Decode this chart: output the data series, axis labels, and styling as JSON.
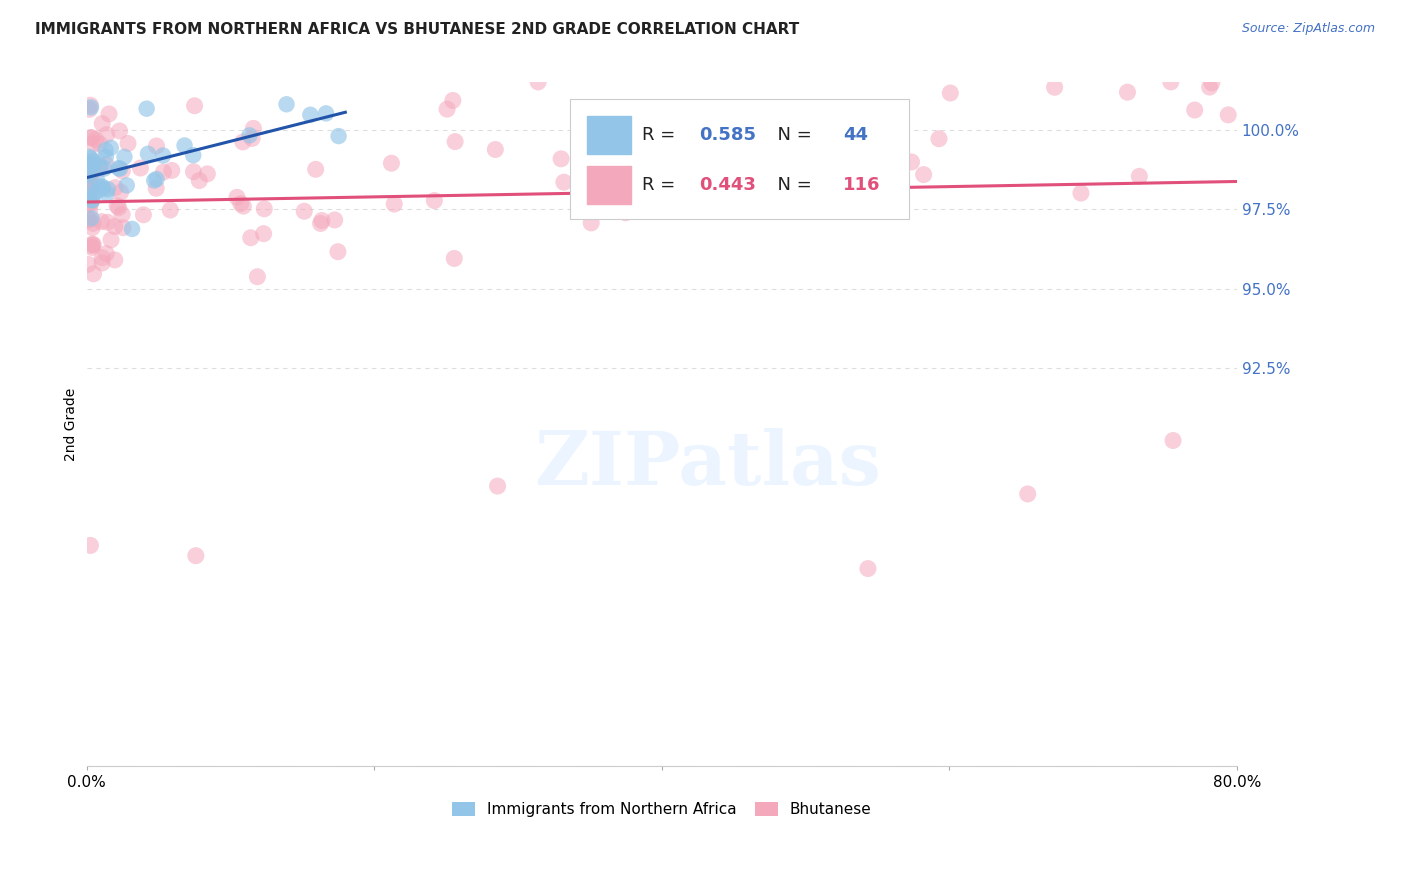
{
  "title": "IMMIGRANTS FROM NORTHERN AFRICA VS BHUTANESE 2ND GRADE CORRELATION CHART",
  "source": "Source: ZipAtlas.com",
  "ylabel": "2nd Grade",
  "xlim": [
    0.0,
    80.0
  ],
  "ylim": [
    80.0,
    101.5
  ],
  "y_ticks_right": [
    100.0,
    97.5,
    95.0,
    92.5
  ],
  "y_tick_labels_right": [
    "100.0%",
    "97.5%",
    "95.0%",
    "92.5%"
  ],
  "legend_label_1": "Immigrants from Northern Africa",
  "legend_label_2": "Bhutanese",
  "r1": 0.585,
  "n1": 44,
  "r2": 0.443,
  "n2": 116,
  "color_blue": "#92C5E8",
  "color_pink": "#F4A8BC",
  "line_color_blue": "#2255AA",
  "line_color_pink": "#E0507A",
  "background_color": "#FFFFFF",
  "grid_color": "#DDDDDD",
  "title_color": "#222222",
  "source_color": "#4472C4",
  "right_axis_color": "#4472C4",
  "legend_r1_color": "#4472C4",
  "legend_n1_color": "#4472C4",
  "legend_r2_color": "#E0507A",
  "legend_n2_color": "#E0507A"
}
